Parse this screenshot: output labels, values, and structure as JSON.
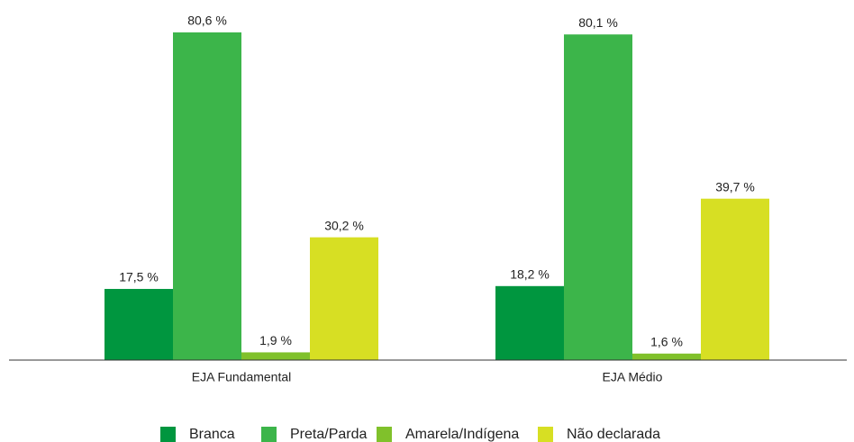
{
  "chart_data": {
    "type": "bar",
    "categories": [
      "EJA Fundamental",
      "EJA Médio"
    ],
    "series": [
      {
        "name": "Branca",
        "color": "#00963f",
        "values": [
          17.5,
          18.2
        ],
        "value_labels": [
          "17,5 %",
          "18,2 %"
        ]
      },
      {
        "name": "Preta/Parda",
        "color": "#3cb54a",
        "values": [
          80.6,
          80.1
        ],
        "value_labels": [
          "80,6 %",
          "80,1 %"
        ]
      },
      {
        "name": "Amarela/Indígena",
        "color": "#80c12b",
        "values": [
          1.9,
          1.6
        ],
        "value_labels": [
          "1,9 %",
          "1,6 %"
        ]
      },
      {
        "name": "Não declarada",
        "color": "#d7df23",
        "values": [
          30.2,
          39.7
        ],
        "value_labels": [
          "30,2 %",
          "39,7 %"
        ]
      }
    ],
    "legend": "bottom"
  }
}
